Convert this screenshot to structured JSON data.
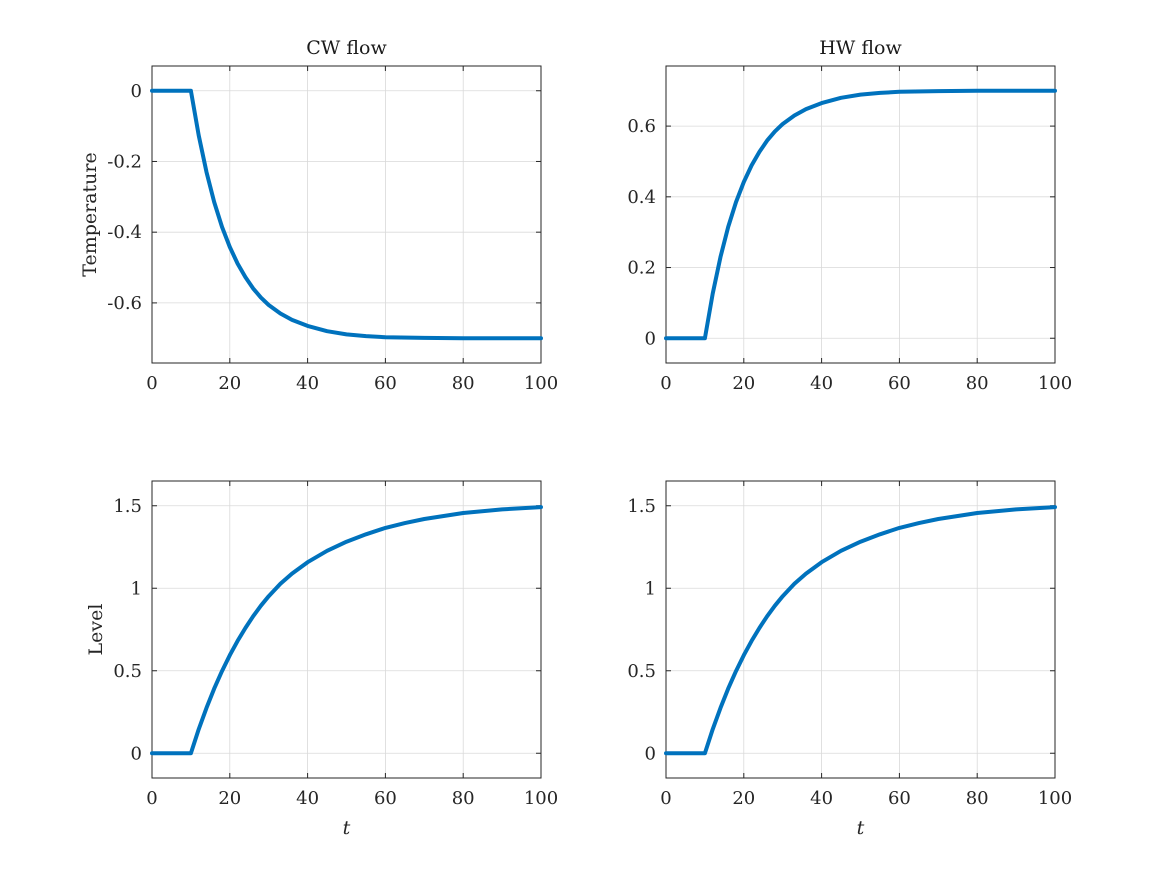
{
  "figure": {
    "line_color": "#0072BD",
    "grid": true
  },
  "chart_data": [
    {
      "type": "line",
      "title": "CW flow",
      "xlabel": "",
      "ylabel": "Temperature",
      "xlim": [
        0,
        100
      ],
      "ylim": [
        -0.77,
        0.07
      ],
      "xticks": [
        0,
        20,
        40,
        60,
        80,
        100
      ],
      "xtick_labels": [
        "0",
        "20",
        "40",
        "60",
        "80",
        "100"
      ],
      "yticks": [
        0,
        -0.2,
        -0.4,
        -0.6
      ],
      "ytick_labels": [
        "0",
        "-0.2",
        "-0.4",
        "-0.6"
      ],
      "series": [
        {
          "x": [
            0,
            10,
            12,
            14,
            16,
            18,
            20,
            22,
            24,
            26,
            28,
            30,
            33,
            36,
            40,
            45,
            50,
            55,
            60,
            70,
            80,
            90,
            100
          ],
          "y": [
            0,
            0,
            -0.126,
            -0.23,
            -0.315,
            -0.385,
            -0.442,
            -0.489,
            -0.527,
            -0.559,
            -0.585,
            -0.606,
            -0.63,
            -0.648,
            -0.665,
            -0.68,
            -0.689,
            -0.694,
            -0.697,
            -0.699,
            -0.7,
            -0.7,
            -0.7
          ]
        }
      ]
    },
    {
      "type": "line",
      "title": "HW flow",
      "xlabel": "",
      "ylabel": "",
      "xlim": [
        0,
        100
      ],
      "ylim": [
        -0.07,
        0.77
      ],
      "xticks": [
        0,
        20,
        40,
        60,
        80,
        100
      ],
      "xtick_labels": [
        "0",
        "20",
        "40",
        "60",
        "80",
        "100"
      ],
      "yticks": [
        0,
        0.2,
        0.4,
        0.6
      ],
      "ytick_labels": [
        "0",
        "0.2",
        "0.4",
        "0.6"
      ],
      "series": [
        {
          "x": [
            0,
            10,
            12,
            14,
            16,
            18,
            20,
            22,
            24,
            26,
            28,
            30,
            33,
            36,
            40,
            45,
            50,
            55,
            60,
            70,
            80,
            90,
            100
          ],
          "y": [
            0,
            0,
            0.126,
            0.23,
            0.315,
            0.385,
            0.442,
            0.489,
            0.527,
            0.559,
            0.585,
            0.606,
            0.63,
            0.648,
            0.665,
            0.68,
            0.689,
            0.694,
            0.697,
            0.699,
            0.7,
            0.7,
            0.7
          ]
        }
      ]
    },
    {
      "type": "line",
      "title": "",
      "xlabel": "t",
      "ylabel": "Level",
      "xlim": [
        0,
        100
      ],
      "ylim": [
        -0.15,
        1.65
      ],
      "xticks": [
        0,
        20,
        40,
        60,
        80,
        100
      ],
      "xtick_labels": [
        "0",
        "20",
        "40",
        "60",
        "80",
        "100"
      ],
      "yticks": [
        0,
        0.5,
        1,
        1.5
      ],
      "ytick_labels": [
        "0",
        "0.5",
        "1",
        "1.5"
      ],
      "series": [
        {
          "x": [
            0,
            10,
            12,
            14,
            16,
            18,
            20,
            22,
            24,
            26,
            28,
            30,
            33,
            36,
            40,
            45,
            50,
            55,
            60,
            65,
            70,
            80,
            90,
            100
          ],
          "y": [
            0,
            0,
            0.145,
            0.275,
            0.392,
            0.498,
            0.594,
            0.681,
            0.759,
            0.83,
            0.894,
            0.952,
            1.027,
            1.089,
            1.158,
            1.227,
            1.282,
            1.327,
            1.366,
            1.395,
            1.42,
            1.456,
            1.478,
            1.492
          ]
        }
      ]
    },
    {
      "type": "line",
      "title": "",
      "xlabel": "t",
      "ylabel": "",
      "xlim": [
        0,
        100
      ],
      "ylim": [
        -0.15,
        1.65
      ],
      "xticks": [
        0,
        20,
        40,
        60,
        80,
        100
      ],
      "xtick_labels": [
        "0",
        "20",
        "40",
        "60",
        "80",
        "100"
      ],
      "yticks": [
        0,
        0.5,
        1,
        1.5
      ],
      "ytick_labels": [
        "0",
        "0.5",
        "1",
        "1.5"
      ],
      "series": [
        {
          "x": [
            0,
            10,
            12,
            14,
            16,
            18,
            20,
            22,
            24,
            26,
            28,
            30,
            33,
            36,
            40,
            45,
            50,
            55,
            60,
            65,
            70,
            80,
            90,
            100
          ],
          "y": [
            0,
            0,
            0.145,
            0.275,
            0.392,
            0.498,
            0.594,
            0.681,
            0.759,
            0.83,
            0.894,
            0.952,
            1.027,
            1.089,
            1.158,
            1.227,
            1.282,
            1.327,
            1.366,
            1.395,
            1.42,
            1.456,
            1.478,
            1.492
          ]
        }
      ]
    }
  ]
}
